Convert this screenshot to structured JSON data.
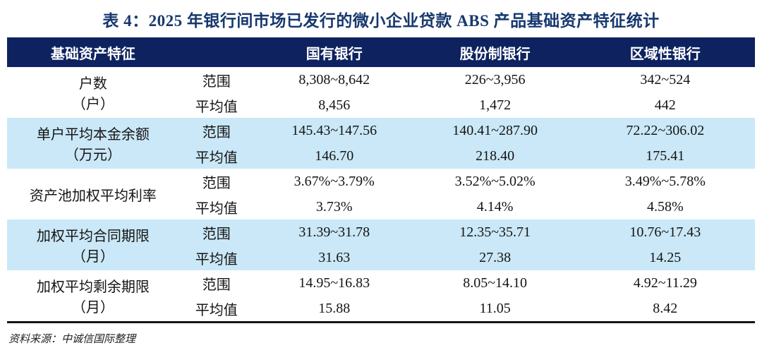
{
  "title": "表 4：2025 年银行间市场已发行的微小企业贷款 ABS 产品基础资产特征统计",
  "source": "资料来源：中诚信国际整理",
  "colors": {
    "title_navy": "#17386e",
    "header_bg": "#0e2260",
    "header_text": "#ffffff",
    "alt_row_blue": "#cae8f7",
    "body_text": "#141414",
    "bottom_rule": "#151515"
  },
  "table": {
    "header": {
      "feature": "基础资产特征",
      "stat": "",
      "banks": [
        "国有银行",
        "股份制银行",
        "区域性银行"
      ]
    },
    "stat_labels": {
      "range": "范围",
      "mean": "平均值"
    },
    "groups": [
      {
        "name": "户数",
        "unit": "（户）",
        "range": [
          "8,308~8,642",
          "226~3,956",
          "342~524"
        ],
        "mean": [
          "8,456",
          "1,472",
          "442"
        ]
      },
      {
        "name": "单户平均本金余额",
        "unit": "（万元）",
        "range": [
          "145.43~147.56",
          "140.41~287.90",
          "72.22~306.02"
        ],
        "mean": [
          "146.70",
          "218.40",
          "175.41"
        ]
      },
      {
        "name": "资产池加权平均利率",
        "unit": "",
        "range": [
          "3.67%~3.79%",
          "3.52%~5.02%",
          "3.49%~5.78%"
        ],
        "mean": [
          "3.73%",
          "4.14%",
          "4.58%"
        ]
      },
      {
        "name": "加权平均合同期限",
        "unit": "（月）",
        "range": [
          "31.39~31.78",
          "12.35~35.71",
          "10.76~17.43"
        ],
        "mean": [
          "31.63",
          "27.38",
          "14.25"
        ]
      },
      {
        "name": "加权平均剩余期限",
        "unit": "（月）",
        "range": [
          "14.95~16.83",
          "8.05~14.10",
          "4.92~11.29"
        ],
        "mean": [
          "15.88",
          "11.05",
          "8.42"
        ]
      }
    ]
  }
}
